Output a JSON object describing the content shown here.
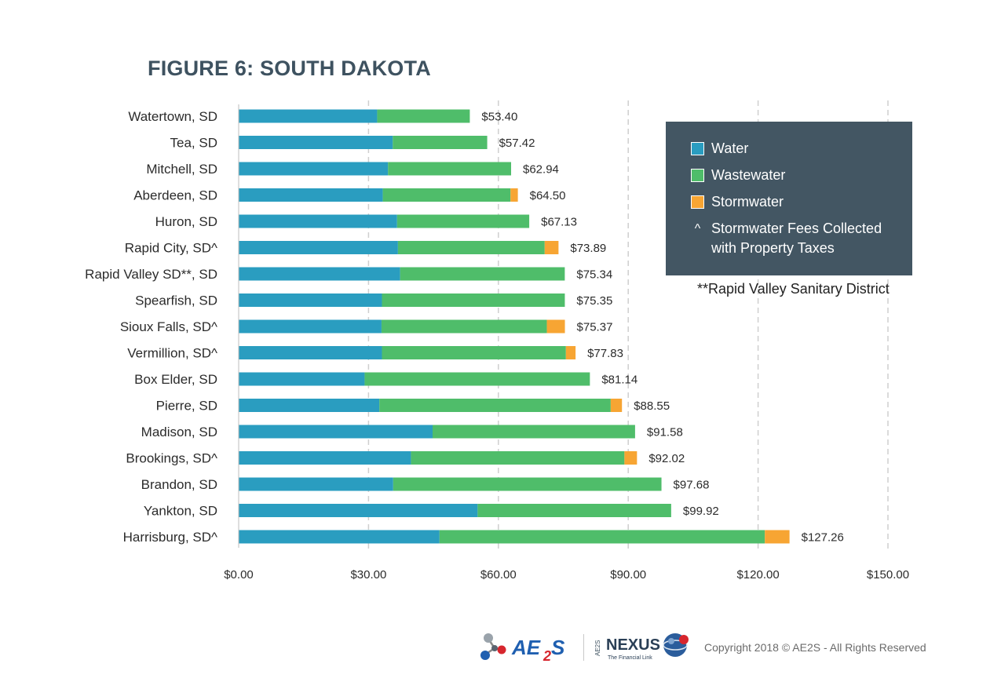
{
  "chart_data": {
    "type": "bar",
    "orientation": "horizontal",
    "stacked": true,
    "title": "FIGURE 6: SOUTH DAKOTA",
    "categories": [
      "Watertown, SD",
      "Tea, SD",
      "Mitchell, SD",
      "Aberdeen, SD",
      "Huron, SD",
      "Rapid City, SD^",
      "Rapid Valley SD**, SD",
      "Spearfish, SD",
      "Sioux Falls, SD^",
      "Vermillion, SD^",
      "Box Elder, SD",
      "Pierre, SD",
      "Madison, SD",
      "Brookings, SD^",
      "Brandon, SD",
      "Yankton, SD",
      "Harrisburg, SD^"
    ],
    "series": [
      {
        "name": "Water",
        "color": "#2a9dc0",
        "values": [
          32.0,
          35.6,
          34.5,
          33.3,
          36.6,
          36.8,
          37.3,
          33.1,
          33.0,
          33.1,
          29.1,
          32.5,
          44.8,
          39.8,
          35.7,
          55.2,
          46.4
        ]
      },
      {
        "name": "Wastewater",
        "color": "#4fbd6a",
        "values": [
          21.4,
          21.82,
          28.44,
          29.5,
          30.53,
          33.9,
          38.04,
          42.25,
          38.2,
          42.5,
          52.04,
          53.45,
          46.78,
          49.32,
          61.98,
          44.72,
          75.16
        ]
      },
      {
        "name": "Stormwater",
        "color": "#f7a533",
        "values": [
          0,
          0,
          0,
          1.7,
          0,
          3.19,
          0,
          0,
          4.17,
          2.23,
          0,
          2.6,
          0,
          2.9,
          0,
          0,
          5.7
        ]
      }
    ],
    "totals": [
      "$53.40",
      "$57.42",
      "$62.94",
      "$64.50",
      "$67.13",
      "$73.89",
      "$75.34",
      "$75.35",
      "$75.37",
      "$77.83",
      "$81.14",
      "$88.55",
      "$91.58",
      "$92.02",
      "$97.68",
      "$99.92",
      "$127.26"
    ],
    "xlim": [
      0,
      150
    ],
    "xticks": [
      0,
      30,
      60,
      90,
      120,
      150
    ],
    "xtick_labels": [
      "$0.00",
      "$30.00",
      "$60.00",
      "$90.00",
      "$120.00",
      "$150.00"
    ],
    "grid": "vertical dashed",
    "legend_position": "right"
  },
  "legend": {
    "water": "Water",
    "wastewater": "Wastewater",
    "stormwater": "Stormwater",
    "caret": "^",
    "note_line1": "Stormwater Fees Collected",
    "note_line2": "with Property Taxes"
  },
  "footnote": "**Rapid Valley Sanitary District",
  "footer": {
    "copyright": "Copyright 2018 © AE2S - All Rights Reserved"
  },
  "colors": {
    "water": "#2a9dc0",
    "wastewater": "#4fbd6a",
    "stormwater": "#f7a533",
    "legend_bg": "#435663",
    "title": "#3e5260"
  }
}
